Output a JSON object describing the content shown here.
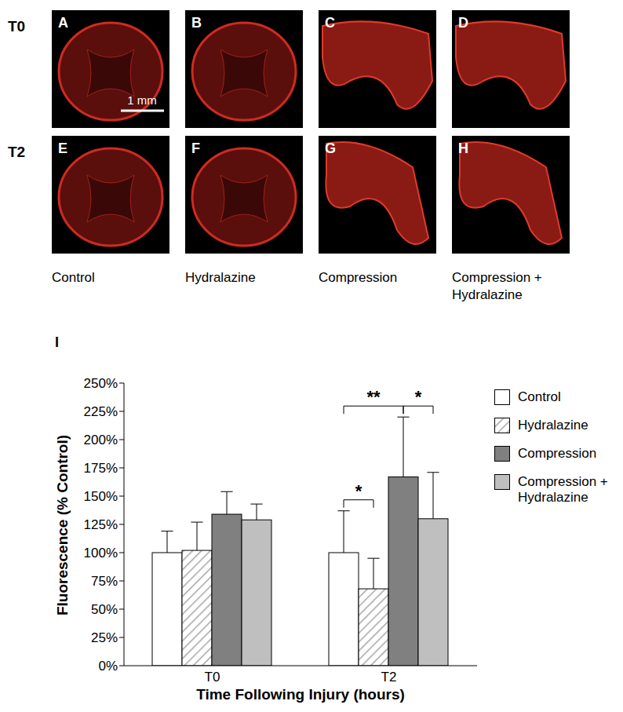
{
  "chart_data": {
    "type": "bar",
    "categories": [
      "T0",
      "T2"
    ],
    "series": [
      {
        "name": "Control",
        "color": "#ffffff",
        "values": [
          100,
          100
        ],
        "errors": [
          19,
          37
        ]
      },
      {
        "name": "Hydralazine",
        "color": "#a6a6a6",
        "values": [
          102,
          68
        ],
        "errors": [
          25,
          27
        ]
      },
      {
        "name": "Compression",
        "color": "#808080",
        "values": [
          134,
          167
        ],
        "errors": [
          20,
          53
        ]
      },
      {
        "name": "Compression + Hydralazine",
        "color": "#bfbfbf",
        "values": [
          129,
          130
        ],
        "errors": [
          14,
          41
        ]
      }
    ],
    "ylim": [
      0,
      250
    ],
    "yticks": [
      {
        "value": 0,
        "label": "0%"
      },
      {
        "value": 25,
        "label": "25%"
      },
      {
        "value": 50,
        "label": "50%"
      },
      {
        "value": 75,
        "label": "75%"
      },
      {
        "value": 100,
        "label": "100%"
      },
      {
        "value": 125,
        "label": "125%"
      },
      {
        "value": 150,
        "label": "150%"
      },
      {
        "value": 175,
        "label": "175%"
      },
      {
        "value": 200,
        "label": "200%"
      },
      {
        "value": 225,
        "label": "225%"
      },
      {
        "value": 250,
        "label": "250%"
      }
    ],
    "x_label": "Time Following Injury (hours)",
    "y_label": "Fluorescence (% Control)",
    "legend": "right",
    "grid": false,
    "annotations": [
      {
        "text": "**",
        "category": "T2",
        "from": "Control",
        "to": "Compression"
      },
      {
        "text": "*",
        "category": "T2",
        "from": "Control",
        "to": "Hydralazine"
      },
      {
        "text": "*",
        "category": "T2",
        "from": "Compression",
        "to": "Compression + Hydralazine"
      }
    ]
  },
  "figure": {
    "panel_label": "I",
    "rows": [
      "T0",
      "T2"
    ],
    "panels": [
      "A",
      "B",
      "C",
      "D",
      "E",
      "F",
      "G",
      "H"
    ],
    "scale_bar": "1 mm",
    "columns": [
      "Control",
      "Hydralazine",
      "Compression",
      "Compression + Hydralazine"
    ]
  }
}
